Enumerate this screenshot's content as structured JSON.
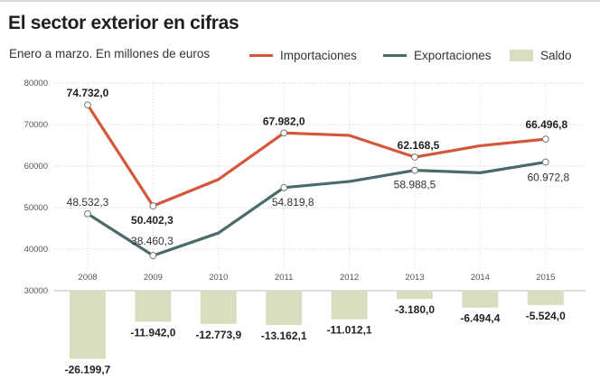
{
  "header": {
    "title": "El sector exterior en cifras",
    "subtitle": "Enero a marzo. En millones de euros"
  },
  "legend": [
    {
      "label": "Importaciones",
      "kind": "line",
      "color": "#d4573b"
    },
    {
      "label": "Exportaciones",
      "kind": "line",
      "color": "#4a6b6c"
    },
    {
      "label": "Saldo",
      "kind": "box",
      "color": "#d8dfc0"
    }
  ],
  "chart_data": {
    "type": "line+bar",
    "categories": [
      "2008",
      "2009",
      "2010",
      "2011",
      "2012",
      "2013",
      "2014",
      "2015"
    ],
    "y_ticks": [
      "80000",
      "70000",
      "60000",
      "50000",
      "40000",
      "30000"
    ],
    "ylim": [
      30000,
      80000
    ],
    "series": [
      {
        "name": "Importaciones",
        "type": "line",
        "color": "#d4573b",
        "values": [
          74732.0,
          50402.3,
          56800,
          67982.0,
          67400,
          62168.5,
          64900,
          66496.8
        ],
        "labels": [
          "74.732,0",
          "50.402,3",
          "",
          "67.982,0",
          "",
          "62.168,5",
          "",
          "66.496,8"
        ]
      },
      {
        "name": "Exportaciones",
        "type": "line",
        "color": "#4a6b6c",
        "values": [
          48532.3,
          38460.3,
          43900,
          54819.8,
          56300,
          58988.5,
          58400,
          60972.8
        ],
        "labels": [
          "48.532,3",
          "38.460,3",
          "",
          "54.819,8",
          "",
          "58.988,5",
          "",
          "60.972,8"
        ]
      },
      {
        "name": "Saldo",
        "type": "bar",
        "color": "#d8dfc0",
        "values": [
          -26199.7,
          -11942.0,
          -12773.9,
          -13162.1,
          -11012.1,
          -3180.0,
          -6494.4,
          -5524.0
        ],
        "labels": [
          "-26.199,7",
          "-11.942,0",
          "-12.773,9",
          "-13.162,1",
          "-11.012,1",
          "-3.180,0",
          "-6.494,4",
          "-5.524,0"
        ]
      }
    ]
  }
}
